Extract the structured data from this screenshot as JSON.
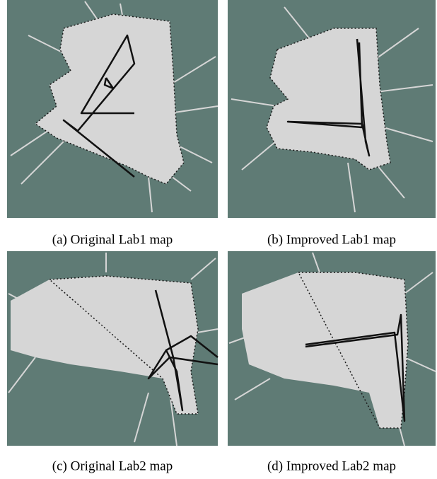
{
  "figures": [
    {
      "caption": "(a) Original Lab1 map"
    },
    {
      "caption": "(b) Improved Lab1 map"
    },
    {
      "caption": "(c) Original Lab2 map"
    },
    {
      "caption": "(d) Improved Lab2 map"
    }
  ]
}
